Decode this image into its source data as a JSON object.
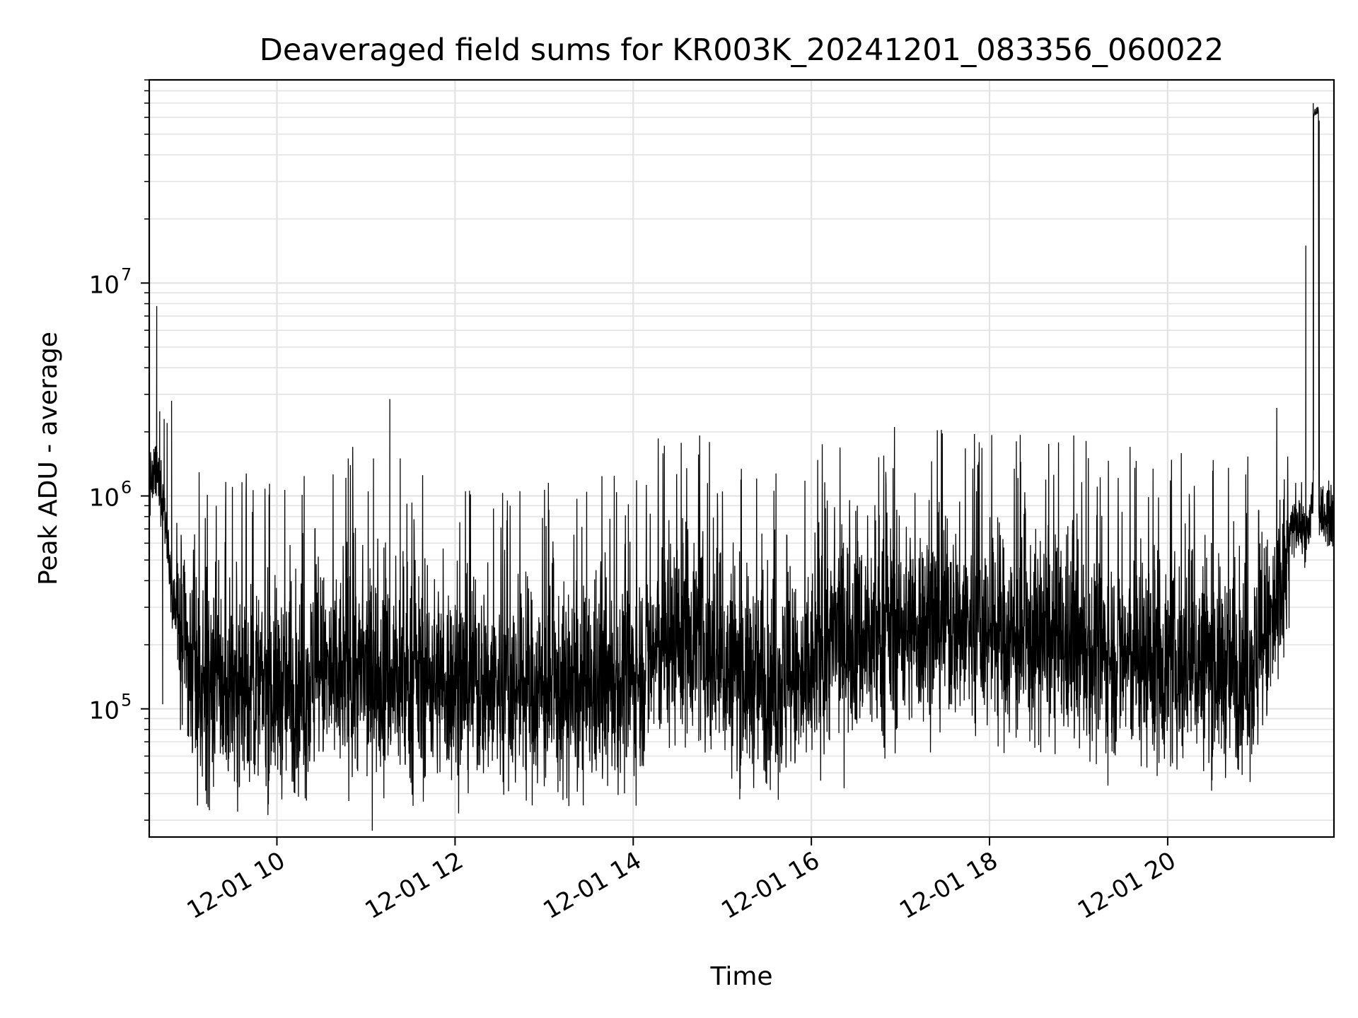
{
  "chart_data": {
    "type": "line",
    "title": "Deaveraged field sums for KR003K_20241201_083356_060022",
    "xlabel": "Time",
    "ylabel": "Peak ADU - average",
    "y_scale": "log",
    "ylim": [
      25000,
      90000000
    ],
    "xlim": [
      "12-01 08:34",
      "12-01 21:52"
    ],
    "grid": true,
    "x_ticks": [
      {
        "value": "12-01 10:00",
        "label": "12-01 10"
      },
      {
        "value": "12-01 12:00",
        "label": "12-01 12"
      },
      {
        "value": "12-01 14:00",
        "label": "12-01 14"
      },
      {
        "value": "12-01 16:00",
        "label": "12-01 16"
      },
      {
        "value": "12-01 18:00",
        "label": "12-01 18"
      },
      {
        "value": "12-01 20:00",
        "label": "12-01 20"
      }
    ],
    "y_ticks": [
      {
        "value": 100000,
        "base": "10",
        "exp": "5"
      },
      {
        "value": 1000000,
        "base": "10",
        "exp": "6"
      },
      {
        "value": 10000000,
        "base": "10",
        "exp": "7"
      }
    ],
    "series": [
      {
        "color": "#000000",
        "x": [
          "12-01 08:34",
          "12-01 08:38",
          "12-01 08:40",
          "12-01 08:41",
          "12-01 08:44",
          "12-01 08:47",
          "12-01 08:50",
          "12-01 08:53",
          "12-01 08:56",
          "12-01 09:00",
          "12-01 09:05",
          "12-01 09:10",
          "12-01 09:15",
          "12-01 09:20",
          "12-01 09:25",
          "12-01 09:30",
          "12-01 09:40",
          "12-01 09:50",
          "12-01 10:00",
          "12-01 10:10",
          "12-01 10:20",
          "12-01 10:30",
          "12-01 10:40",
          "12-01 10:50",
          "12-01 11:00",
          "12-01 11:10",
          "12-01 11:15",
          "12-01 11:25",
          "12-01 11:40",
          "12-01 12:00",
          "12-01 12:20",
          "12-01 12:40",
          "12-01 13:00",
          "12-01 13:20",
          "12-01 13:40",
          "12-01 13:50",
          "12-01 14:00",
          "12-01 14:20",
          "12-01 14:40",
          "12-01 14:55",
          "12-01 15:00",
          "12-01 15:20",
          "12-01 15:40",
          "12-01 15:55",
          "12-01 16:05",
          "12-01 16:20",
          "12-01 16:40",
          "12-01 17:00",
          "12-01 17:20",
          "12-01 17:40",
          "12-01 18:00",
          "12-01 18:20",
          "12-01 18:40",
          "12-01 19:00",
          "12-01 19:20",
          "12-01 19:40",
          "12-01 20:00",
          "12-01 20:20",
          "12-01 20:40",
          "12-01 21:00",
          "12-01 21:15",
          "12-01 21:22",
          "12-01 21:26",
          "12-01 21:30",
          "12-01 21:32",
          "12-01 21:35",
          "12-01 21:38",
          "12-01 21:40",
          "12-01 21:42",
          "12-01 21:45",
          "12-01 21:48",
          "12-01 21:52"
        ],
        "y": [
          1100000,
          1300000,
          1200000,
          1150000,
          900000,
          550000,
          350000,
          260000,
          200000,
          160000,
          140000,
          125000,
          120000,
          130000,
          118000,
          125000,
          128000,
          122000,
          125000,
          120000,
          130000,
          145000,
          135000,
          150000,
          140000,
          150000,
          145000,
          130000,
          140000,
          135000,
          130000,
          125000,
          120000,
          115000,
          125000,
          130000,
          140000,
          200000,
          230000,
          170000,
          155000,
          140000,
          130000,
          125000,
          180000,
          230000,
          210000,
          240000,
          260000,
          250000,
          230000,
          200000,
          210000,
          190000,
          180000,
          170000,
          160000,
          165000,
          155000,
          160000,
          300000,
          600000,
          800000,
          720000,
          680000,
          650000,
          1100000,
          700000,
          720000,
          850000,
          800000,
          850000
        ],
        "spikes": [
          {
            "x": "12-01 08:39",
            "y": 7800000
          },
          {
            "x": "12-01 08:41",
            "y": 2500000
          },
          {
            "x": "12-01 08:44",
            "y": 2300000
          },
          {
            "x": "12-01 08:46",
            "y": 2200000
          },
          {
            "x": "12-01 08:49",
            "y": 2800000
          },
          {
            "x": "12-01 10:48",
            "y": 1500000
          },
          {
            "x": "12-01 10:51",
            "y": 1700000
          },
          {
            "x": "12-01 11:05",
            "y": 1500000
          },
          {
            "x": "12-01 11:16",
            "y": 2850000
          },
          {
            "x": "12-01 11:23",
            "y": 1500000
          },
          {
            "x": "12-01 14:50",
            "y": 1150000
          },
          {
            "x": "12-01 16:55",
            "y": 1350000
          },
          {
            "x": "12-01 17:28",
            "y": 1600000
          },
          {
            "x": "12-01 17:52",
            "y": 1400000
          },
          {
            "x": "12-01 21:33",
            "y": 15000000
          },
          {
            "x": "12-01 21:38",
            "y": 70000000
          },
          {
            "x": "12-01 21:40",
            "y": 62000000
          },
          {
            "x": "12-01 21:42",
            "y": 58000000
          }
        ],
        "dips": [
          {
            "x": "12-01 08:43",
            "y": 105000
          },
          {
            "x": "12-01 10:19",
            "y": 38000
          },
          {
            "x": "12-01 11:12",
            "y": 38000
          },
          {
            "x": "12-01 12:36",
            "y": 41000
          }
        ]
      }
    ]
  }
}
